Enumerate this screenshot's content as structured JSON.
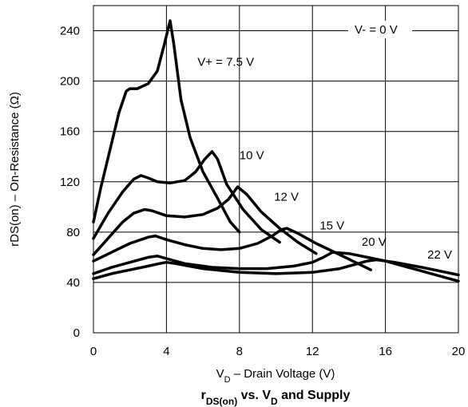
{
  "chart_data": {
    "type": "line",
    "title_main": "r",
    "title_main_sub": "DS(on)",
    "title_mid": " vs. V",
    "title_mid_sub": "D",
    "title_end": " and Supply",
    "xlabel_main": "V",
    "xlabel_sub": "D",
    "xlabel_rest": " – Drain Voltage (V)",
    "ylabel": "rDS(on) – On-Resistance (Ω)",
    "xlim": [
      0,
      20
    ],
    "ylim": [
      0,
      260
    ],
    "x_ticks": [
      0,
      4,
      8,
      12,
      16,
      20
    ],
    "y_ticks": [
      0,
      40,
      80,
      120,
      160,
      200,
      240
    ],
    "x_tick_labels": [
      "0",
      "4",
      "8",
      "12",
      "16",
      "20"
    ],
    "y_tick_labels": [
      "0",
      "40",
      "80",
      "120",
      "160",
      "200",
      "240"
    ],
    "grid": true,
    "legend_note": "V- = 0 V",
    "series": [
      {
        "name": "V+ = 7.5 V",
        "x": [
          0,
          0.4,
          0.9,
          1.4,
          1.8,
          2.0,
          2.4,
          3.0,
          3.5,
          3.9,
          4.2,
          4.4,
          4.8,
          5.3,
          6.0,
          6.8,
          7.5,
          8.0
        ],
        "y": [
          88,
          115,
          145,
          175,
          192,
          194,
          194,
          198,
          208,
          230,
          248,
          230,
          185,
          155,
          128,
          107,
          88,
          80
        ]
      },
      {
        "name": "10 V",
        "x": [
          0,
          0.8,
          1.6,
          2.2,
          2.6,
          3.0,
          3.5,
          4.2,
          5.0,
          5.6,
          6.1,
          6.5,
          6.8,
          7.3,
          8.2,
          9.2,
          10.2
        ],
        "y": [
          75,
          95,
          112,
          122,
          125,
          123,
          120,
          119,
          121,
          128,
          138,
          144,
          138,
          118,
          98,
          82,
          72
        ]
      },
      {
        "name": "12 V",
        "x": [
          0,
          0.8,
          1.6,
          2.2,
          2.8,
          3.2,
          4.0,
          5.0,
          6.0,
          6.8,
          7.4,
          7.9,
          8.4,
          9.2,
          10.2,
          11.2,
          12.2
        ],
        "y": [
          62,
          75,
          88,
          95,
          98,
          97,
          93,
          92,
          94,
          99,
          106,
          116,
          110,
          96,
          83,
          72,
          63
        ]
      },
      {
        "name": "15 V",
        "x": [
          0,
          1.0,
          2.0,
          3.0,
          3.4,
          4.0,
          5.0,
          6.0,
          7.0,
          8.0,
          9.0,
          9.8,
          10.3,
          10.6,
          11.2,
          12.2,
          13.5,
          15.2
        ],
        "y": [
          57,
          64,
          71,
          76,
          77,
          74,
          70,
          67,
          66,
          67,
          71,
          77,
          82,
          83,
          79,
          71,
          62,
          50
        ]
      },
      {
        "name": "20 V",
        "x": [
          0,
          1.0,
          2.0,
          3.0,
          3.5,
          4.0,
          5.0,
          6.5,
          8.0,
          9.5,
          11.0,
          12.0,
          12.6,
          13.1,
          14.0,
          15.0,
          16.0,
          17.5,
          19.0,
          20.0
        ],
        "y": [
          47,
          52,
          56,
          60,
          61,
          59,
          55,
          52,
          51,
          51,
          53,
          56,
          60,
          64,
          63,
          60,
          57,
          51,
          45,
          41
        ]
      },
      {
        "name": "22 V",
        "x": [
          0,
          1.0,
          2.0,
          3.0,
          3.6,
          4.0,
          4.5,
          6.0,
          8.0,
          10.0,
          12.0,
          13.5,
          14.5,
          15.0,
          15.5,
          16.5,
          18.0,
          19.0,
          20.0
        ],
        "y": [
          43,
          47,
          50,
          53,
          55,
          56,
          55,
          51,
          48,
          47,
          48,
          51,
          55,
          57,
          58,
          56,
          52,
          49,
          46
        ]
      }
    ],
    "annotations": [
      {
        "text": "V+ = 7.5 V",
        "x": 5.7,
        "y": 212
      },
      {
        "text": "10 V",
        "x": 8.0,
        "y": 138
      },
      {
        "text": "12 V",
        "x": 9.9,
        "y": 105
      },
      {
        "text": "15 V",
        "x": 12.4,
        "y": 82
      },
      {
        "text": "20 V",
        "x": 14.7,
        "y": 69
      },
      {
        "text": "22 V",
        "x": 18.3,
        "y": 59
      }
    ]
  }
}
